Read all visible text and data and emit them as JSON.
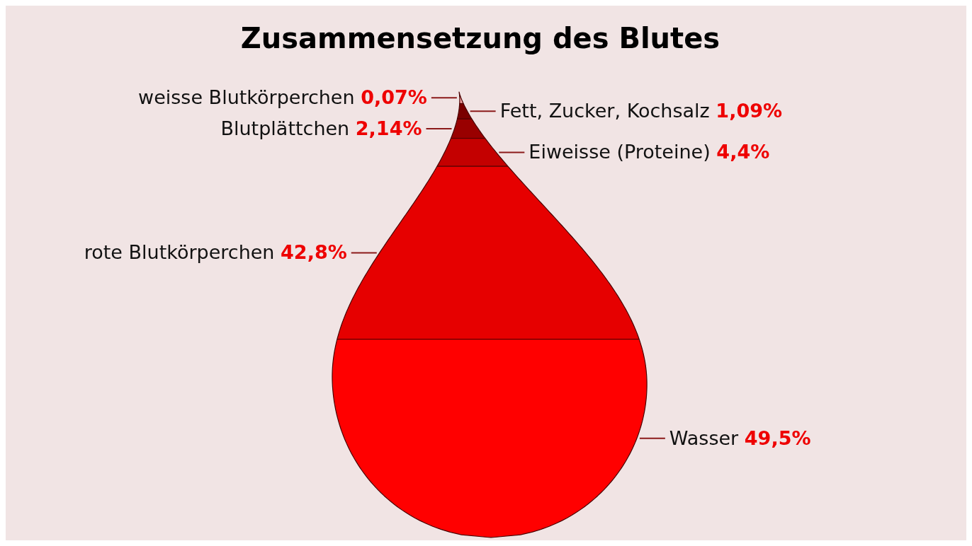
{
  "chart_data": {
    "type": "other",
    "title": "Zusammensetzung des Blutes",
    "categories": [
      "weisse Blutkörperchen",
      "Fett, Zucker, Kochsalz",
      "Blutplättchen",
      "Eiweisse (Proteine)",
      "rote Blutkörperchen",
      "Wasser"
    ],
    "values": [
      0.07,
      1.09,
      2.14,
      4.4,
      42.8,
      49.5
    ],
    "value_labels": [
      "0,07%",
      "1,09%",
      "2,14%",
      "4,4%",
      "42,8%",
      "49,5%"
    ],
    "colors": [
      "#f2a0a0",
      "#7a0000",
      "#990000",
      "#c40000",
      "#e60000",
      "#ff0000"
    ]
  }
}
